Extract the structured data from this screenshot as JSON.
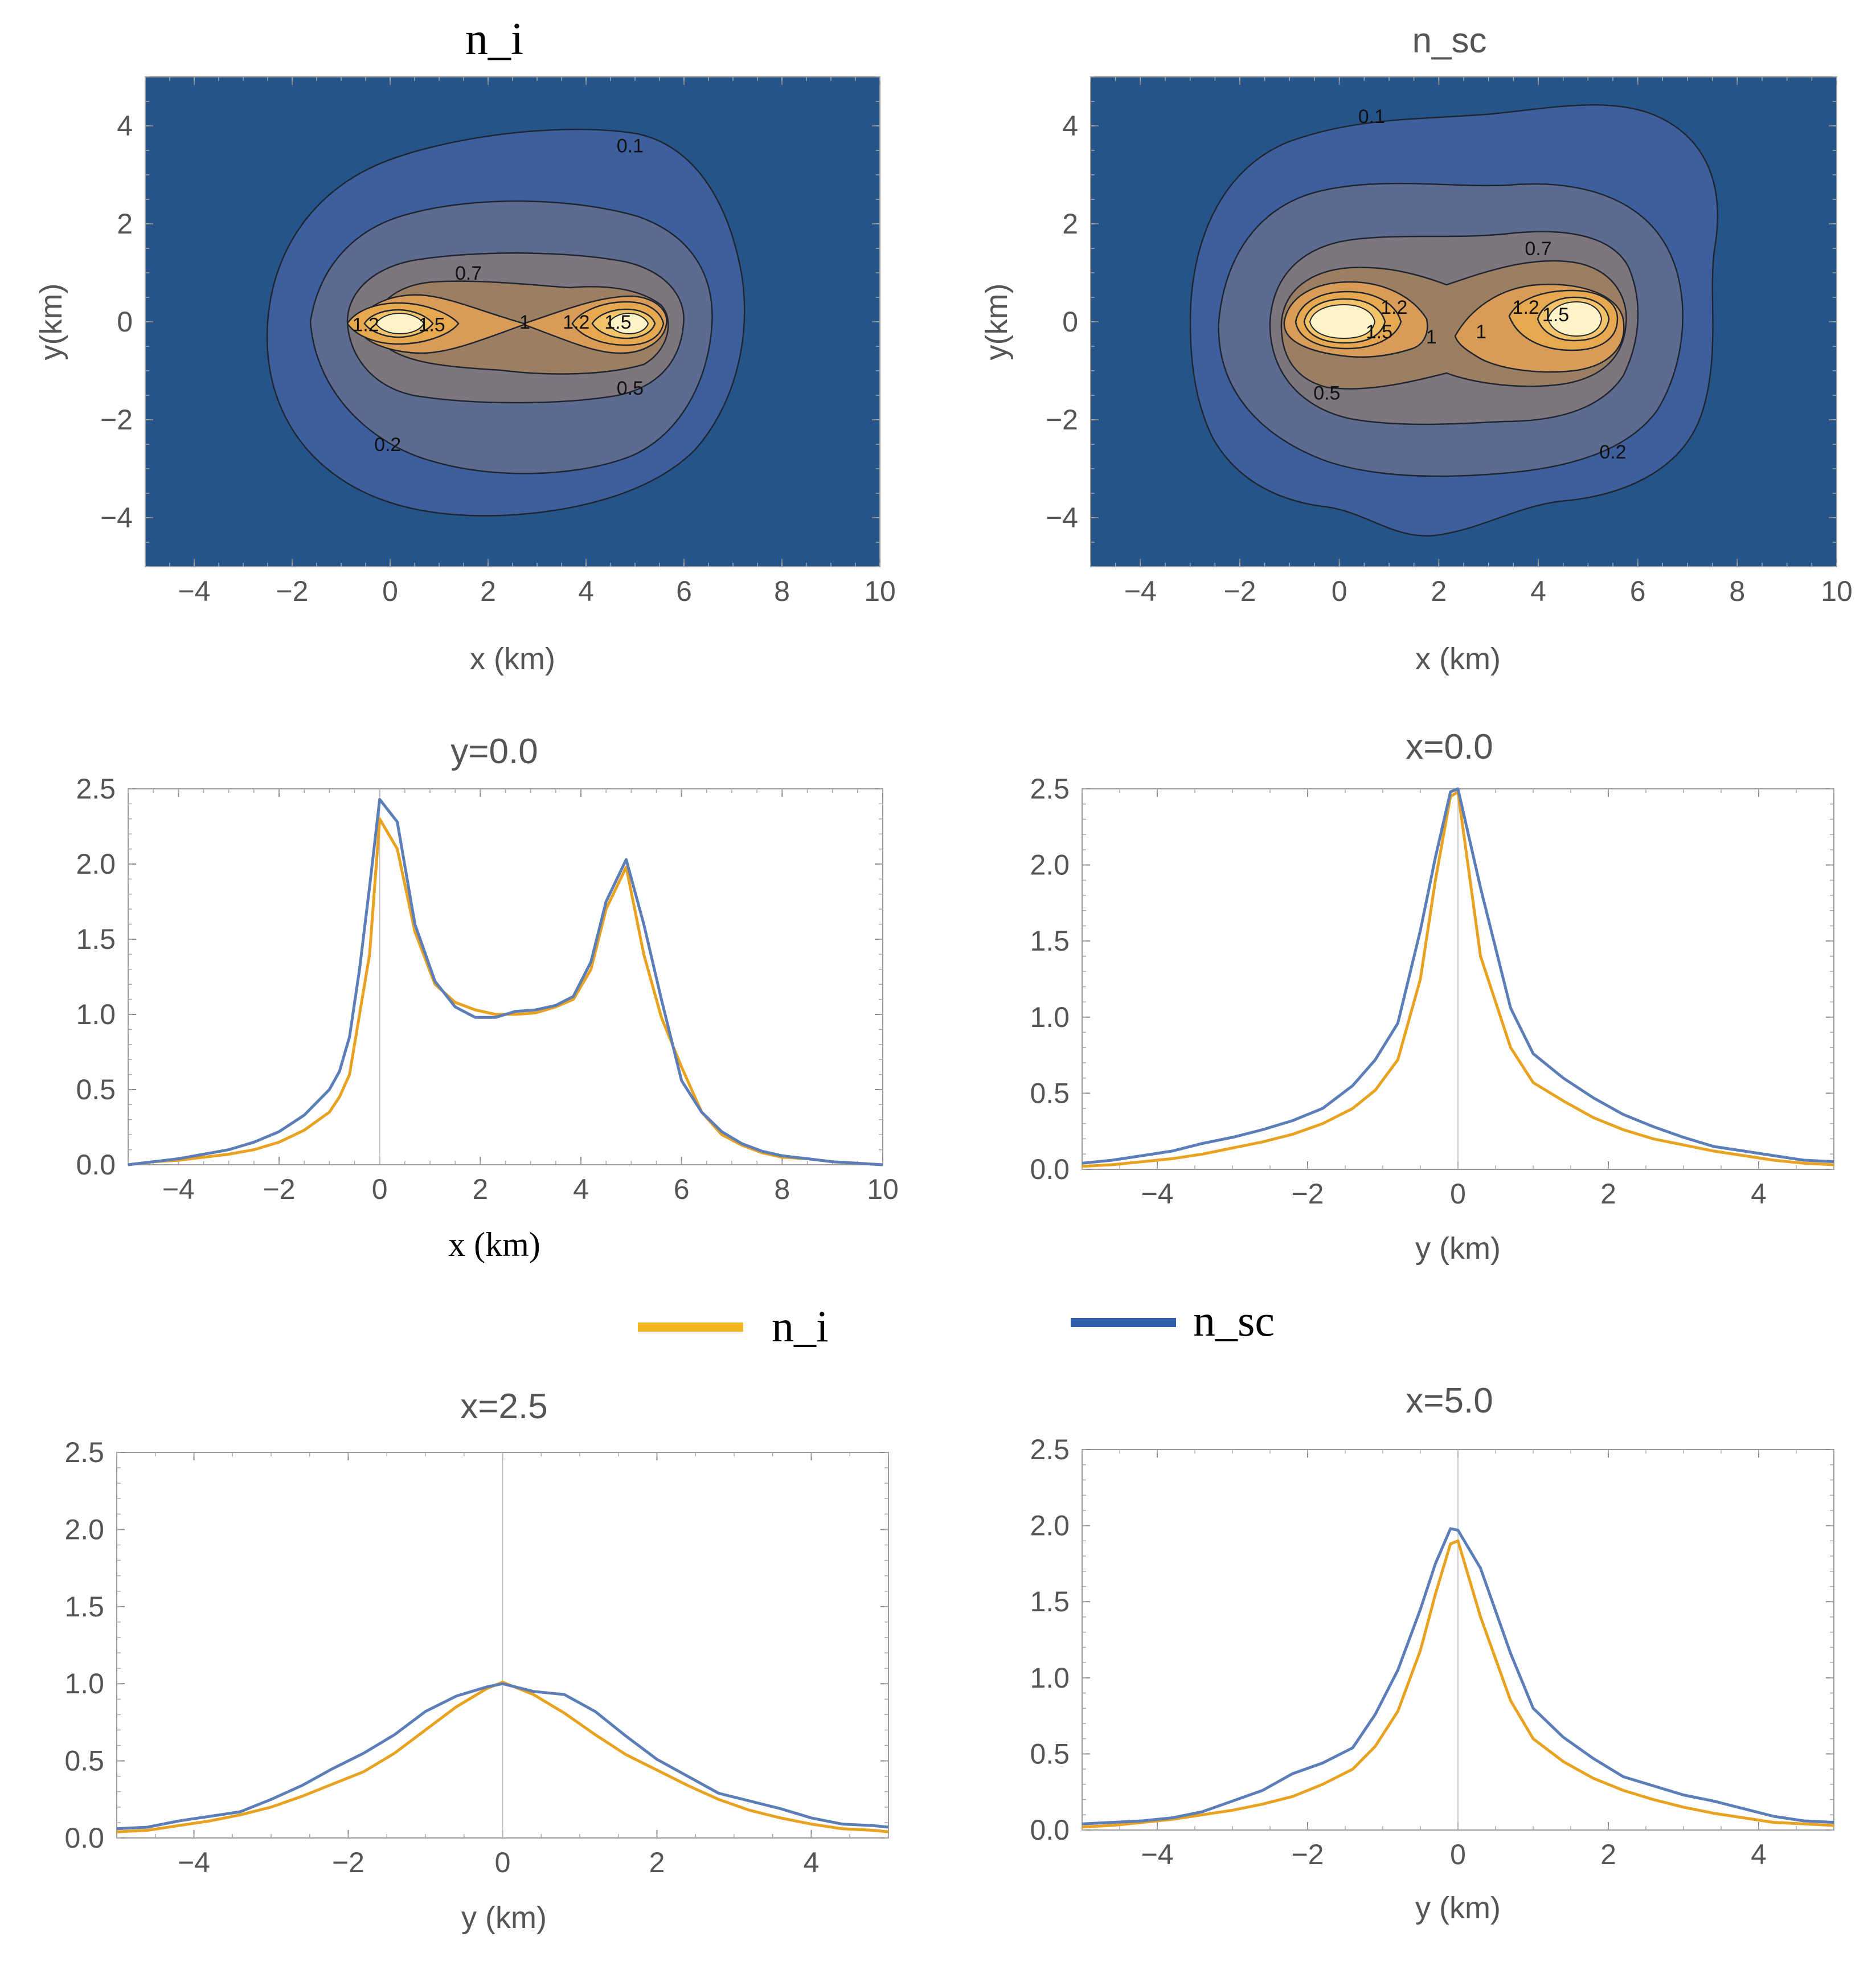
{
  "legend": [
    {
      "label": "n_i",
      "color": "#F0B41E"
    },
    {
      "label": "n_sc",
      "color": "#2E5EAA"
    }
  ],
  "chart_data": [
    {
      "id": "contour-ni",
      "type": "contour",
      "title": "n_i",
      "xlabel": "x (km)",
      "ylabel": "y(km)",
      "xlim": [
        -5,
        10
      ],
      "ylim": [
        -5,
        5
      ],
      "xticks": [
        -4,
        -2,
        0,
        2,
        4,
        6,
        8,
        10
      ],
      "yticks": [
        -4,
        -2,
        0,
        2,
        4
      ],
      "levels": [
        0.1,
        0.2,
        0.5,
        0.7,
        1,
        1.2,
        1.5
      ],
      "labels": [
        {
          "text": "0.1",
          "x": 4.9,
          "y": 3.6
        },
        {
          "text": "0.7",
          "x": 1.6,
          "y": 1.0
        },
        {
          "text": "1.2",
          "x": -0.5,
          "y": -0.05
        },
        {
          "text": "1.5",
          "x": 0.85,
          "y": -0.05
        },
        {
          "text": "1",
          "x": 2.75,
          "y": 0.0
        },
        {
          "text": "1.2",
          "x": 3.8,
          "y": 0.0
        },
        {
          "text": "1.5",
          "x": 4.65,
          "y": 0.0
        },
        {
          "text": "0.5",
          "x": 4.9,
          "y": -1.35
        },
        {
          "text": "0.2",
          "x": -0.05,
          "y": -2.5
        }
      ]
    },
    {
      "id": "contour-nsc",
      "type": "contour",
      "title": "n_sc",
      "xlabel": "x (km)",
      "ylabel": "y(km)",
      "xlim": [
        -5,
        10
      ],
      "ylim": [
        -5,
        5
      ],
      "xticks": [
        -4,
        -2,
        0,
        2,
        4,
        6,
        8,
        10
      ],
      "yticks": [
        -4,
        -2,
        0,
        2,
        4
      ],
      "levels": [
        0.1,
        0.2,
        0.5,
        0.7,
        1,
        1.2,
        1.5
      ],
      "labels": [
        {
          "text": "0.1",
          "x": 0.65,
          "y": 4.2
        },
        {
          "text": "0.7",
          "x": 4.0,
          "y": 1.5
        },
        {
          "text": "1.2",
          "x": 1.1,
          "y": 0.3
        },
        {
          "text": "1.5",
          "x": 0.8,
          "y": -0.2
        },
        {
          "text": "1",
          "x": 1.85,
          "y": -0.3
        },
        {
          "text": "1",
          "x": 2.85,
          "y": -0.2
        },
        {
          "text": "1.2",
          "x": 3.75,
          "y": 0.3
        },
        {
          "text": "1.5",
          "x": 4.35,
          "y": 0.15
        },
        {
          "text": "0.5",
          "x": -0.25,
          "y": -1.45
        },
        {
          "text": "0.2",
          "x": 5.5,
          "y": -2.65
        }
      ]
    },
    {
      "id": "profile-y0",
      "type": "line",
      "title": "y=0.0",
      "xlabel": "x (km)",
      "ylabel": "",
      "xlim": [
        -5,
        10
      ],
      "ylim": [
        0,
        2.5
      ],
      "xticks": [
        -4,
        -2,
        0,
        2,
        4,
        6,
        8,
        10
      ],
      "yticks": [
        "0.0",
        "0.5",
        "1.0",
        "1.5",
        "2.0",
        "2.5"
      ],
      "series": [
        {
          "name": "n_i",
          "color": "#F0B41E",
          "x": [
            -5,
            -4.5,
            -4,
            -3.5,
            -3,
            -2.5,
            -2,
            -1.5,
            -1,
            -0.8,
            -0.6,
            -0.4,
            -0.2,
            0,
            0.35,
            0.7,
            1.1,
            1.5,
            1.9,
            2.3,
            2.7,
            3.1,
            3.5,
            3.85,
            4.2,
            4.5,
            4.9,
            5.25,
            5.6,
            6,
            6.4,
            6.8,
            7.2,
            7.6,
            8,
            8.5,
            9,
            9.5,
            10
          ],
          "values": [
            0.0,
            0.02,
            0.03,
            0.05,
            0.07,
            0.1,
            0.15,
            0.23,
            0.35,
            0.45,
            0.6,
            1.0,
            1.4,
            2.3,
            2.1,
            1.55,
            1.2,
            1.08,
            1.03,
            1.0,
            1.0,
            1.01,
            1.05,
            1.1,
            1.3,
            1.7,
            1.98,
            1.4,
            0.98,
            0.65,
            0.35,
            0.2,
            0.13,
            0.08,
            0.05,
            0.04,
            0.02,
            0.01,
            0.0
          ]
        },
        {
          "name": "n_sc",
          "color": "#2E5EAA",
          "x": [
            -5,
            -4.5,
            -4,
            -3.5,
            -3,
            -2.5,
            -2,
            -1.5,
            -1,
            -0.8,
            -0.6,
            -0.4,
            -0.2,
            0,
            0.35,
            0.7,
            1.1,
            1.5,
            1.9,
            2.3,
            2.7,
            3.1,
            3.5,
            3.85,
            4.2,
            4.5,
            4.9,
            5.25,
            5.6,
            6,
            6.4,
            6.8,
            7.2,
            7.6,
            8,
            8.5,
            9,
            9.5,
            10
          ],
          "values": [
            0.0,
            0.02,
            0.04,
            0.07,
            0.1,
            0.15,
            0.22,
            0.33,
            0.5,
            0.62,
            0.85,
            1.3,
            1.85,
            2.43,
            2.28,
            1.6,
            1.22,
            1.05,
            0.98,
            0.98,
            1.02,
            1.03,
            1.06,
            1.12,
            1.35,
            1.75,
            2.03,
            1.6,
            1.1,
            0.56,
            0.35,
            0.22,
            0.14,
            0.09,
            0.06,
            0.04,
            0.02,
            0.01,
            0.0
          ]
        }
      ]
    },
    {
      "id": "profile-x0",
      "type": "line",
      "title": "x=0.0",
      "xlabel": "y (km)",
      "ylabel": "",
      "xlim": [
        -5,
        5
      ],
      "ylim": [
        0,
        2.5
      ],
      "xticks": [
        -4,
        -2,
        0,
        2,
        4
      ],
      "yticks": [
        "0.0",
        "0.5",
        "1.0",
        "1.5",
        "2.0",
        "2.5"
      ],
      "series": [
        {
          "name": "n_i",
          "color": "#F0B41E",
          "x": [
            -5,
            -4.6,
            -4.2,
            -3.8,
            -3.4,
            -3,
            -2.6,
            -2.2,
            -1.8,
            -1.4,
            -1.1,
            -0.8,
            -0.5,
            -0.3,
            -0.1,
            0,
            0.3,
            0.7,
            1,
            1.4,
            1.8,
            2.2,
            2.6,
            3,
            3.4,
            3.8,
            4.2,
            4.6,
            5
          ],
          "values": [
            0.02,
            0.03,
            0.05,
            0.07,
            0.1,
            0.14,
            0.18,
            0.23,
            0.3,
            0.4,
            0.52,
            0.72,
            1.25,
            1.9,
            2.45,
            2.48,
            1.4,
            0.8,
            0.57,
            0.45,
            0.34,
            0.26,
            0.2,
            0.16,
            0.12,
            0.09,
            0.06,
            0.04,
            0.03
          ]
        },
        {
          "name": "n_sc",
          "color": "#2E5EAA",
          "x": [
            -5,
            -4.6,
            -4.2,
            -3.8,
            -3.4,
            -3,
            -2.6,
            -2.2,
            -1.8,
            -1.4,
            -1.1,
            -0.8,
            -0.5,
            -0.3,
            -0.1,
            0,
            0.3,
            0.7,
            1,
            1.4,
            1.8,
            2.2,
            2.6,
            3,
            3.4,
            3.8,
            4.2,
            4.6,
            5
          ],
          "values": [
            0.04,
            0.06,
            0.09,
            0.12,
            0.17,
            0.21,
            0.26,
            0.32,
            0.4,
            0.55,
            0.72,
            0.96,
            1.57,
            2.05,
            2.48,
            2.5,
            1.85,
            1.06,
            0.76,
            0.6,
            0.47,
            0.36,
            0.28,
            0.21,
            0.15,
            0.12,
            0.09,
            0.06,
            0.05
          ]
        }
      ]
    },
    {
      "id": "profile-x25",
      "type": "line",
      "title": "x=2.5",
      "xlabel": "y (km)",
      "ylabel": "",
      "xlim": [
        -5,
        5
      ],
      "ylim": [
        0,
        2.5
      ],
      "xticks": [
        -4,
        -2,
        0,
        2,
        4
      ],
      "yticks": [
        "0.0",
        "0.5",
        "1.0",
        "1.5",
        "2.0",
        "2.5"
      ],
      "series": [
        {
          "name": "n_i",
          "color": "#F0B41E",
          "x": [
            -5,
            -4.6,
            -4.2,
            -3.8,
            -3.4,
            -3,
            -2.6,
            -2.2,
            -1.8,
            -1.4,
            -1,
            -0.6,
            -0.2,
            0,
            0.4,
            0.8,
            1.2,
            1.6,
            2,
            2.4,
            2.8,
            3.2,
            3.6,
            4,
            4.4,
            4.8,
            5
          ],
          "values": [
            0.04,
            0.05,
            0.08,
            0.11,
            0.15,
            0.2,
            0.27,
            0.35,
            0.43,
            0.55,
            0.7,
            0.85,
            0.97,
            1.01,
            0.93,
            0.81,
            0.67,
            0.54,
            0.44,
            0.34,
            0.25,
            0.18,
            0.13,
            0.09,
            0.06,
            0.05,
            0.04
          ]
        },
        {
          "name": "n_sc",
          "color": "#2E5EAA",
          "x": [
            -5,
            -4.6,
            -4.2,
            -3.8,
            -3.4,
            -3,
            -2.6,
            -2.2,
            -1.8,
            -1.4,
            -1,
            -0.6,
            -0.2,
            0,
            0.4,
            0.8,
            1.2,
            1.6,
            2,
            2.4,
            2.8,
            3.2,
            3.6,
            4,
            4.4,
            4.8,
            5
          ],
          "values": [
            0.06,
            0.07,
            0.11,
            0.14,
            0.17,
            0.25,
            0.34,
            0.45,
            0.55,
            0.67,
            0.82,
            0.92,
            0.98,
            1.0,
            0.95,
            0.93,
            0.82,
            0.66,
            0.51,
            0.4,
            0.29,
            0.24,
            0.19,
            0.13,
            0.09,
            0.08,
            0.07
          ]
        }
      ]
    },
    {
      "id": "profile-x5",
      "type": "line",
      "title": "x=5.0",
      "xlabel": "y (km)",
      "ylabel": "",
      "xlim": [
        -5,
        5
      ],
      "ylim": [
        0,
        2.5
      ],
      "xticks": [
        -4,
        -2,
        0,
        2,
        4
      ],
      "yticks": [
        "0.0",
        "0.5",
        "1.0",
        "1.5",
        "2.0",
        "2.5"
      ],
      "series": [
        {
          "name": "n_i",
          "color": "#F0B41E",
          "x": [
            -5,
            -4.6,
            -4.2,
            -3.8,
            -3.4,
            -3,
            -2.6,
            -2.2,
            -1.8,
            -1.4,
            -1.1,
            -0.8,
            -0.5,
            -0.3,
            -0.1,
            0,
            0.3,
            0.7,
            1,
            1.4,
            1.8,
            2.2,
            2.6,
            3,
            3.4,
            3.8,
            4.2,
            4.6,
            5
          ],
          "values": [
            0.02,
            0.03,
            0.05,
            0.07,
            0.1,
            0.13,
            0.17,
            0.22,
            0.3,
            0.4,
            0.55,
            0.78,
            1.18,
            1.55,
            1.88,
            1.9,
            1.4,
            0.85,
            0.6,
            0.45,
            0.34,
            0.26,
            0.2,
            0.15,
            0.11,
            0.08,
            0.05,
            0.04,
            0.03
          ]
        },
        {
          "name": "n_sc",
          "color": "#2E5EAA",
          "x": [
            -5,
            -4.6,
            -4.2,
            -3.8,
            -3.4,
            -3,
            -2.6,
            -2.2,
            -1.8,
            -1.4,
            -1.1,
            -0.8,
            -0.5,
            -0.3,
            -0.1,
            0,
            0.3,
            0.7,
            1,
            1.4,
            1.8,
            2.2,
            2.6,
            3,
            3.4,
            3.8,
            4.2,
            4.6,
            5
          ],
          "values": [
            0.04,
            0.05,
            0.06,
            0.08,
            0.12,
            0.19,
            0.26,
            0.37,
            0.44,
            0.54,
            0.76,
            1.05,
            1.45,
            1.75,
            1.98,
            1.97,
            1.72,
            1.16,
            0.8,
            0.61,
            0.47,
            0.35,
            0.29,
            0.23,
            0.19,
            0.14,
            0.09,
            0.06,
            0.05
          ]
        }
      ]
    }
  ]
}
